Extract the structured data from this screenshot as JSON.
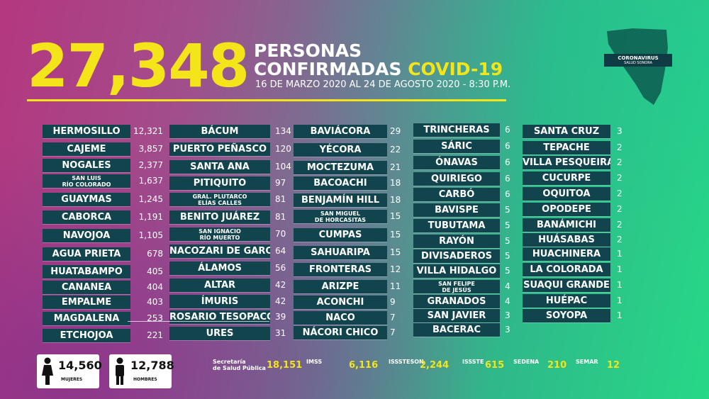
{
  "header": {
    "total": "27,348",
    "line1": "PERSONAS",
    "line2": "CONFIRMADAS",
    "covid": "COVID-19",
    "date_range": "16 DE MARZO 2020 AL 24 DE AGOSTO 2020 - 8:30 P.M."
  },
  "badge": {
    "title": "CORONAVIRUS",
    "subtitle": "SALUD SONORA"
  },
  "colors": {
    "accent": "#f4e41a",
    "pill": "#12444d"
  },
  "columns": [
    [
      {
        "name": "HERMOSILLO",
        "value": "12,321"
      },
      {
        "name": "CAJEME",
        "value": "3,857"
      },
      {
        "name": "NOGALES",
        "value": "2,377"
      },
      {
        "name": "SAN LUIS\nRÍO COLORADO",
        "value": "1,637"
      },
      {
        "name": "GUAYMAS",
        "value": "1,245"
      },
      {
        "name": "CABORCA",
        "value": "1,191"
      },
      {
        "name": "NAVOJOA",
        "value": "1,105"
      },
      {
        "name": "AGUA PRIETA",
        "value": "678"
      },
      {
        "name": "HUATABAMPO",
        "value": "405"
      },
      {
        "name": "CANANEA",
        "value": "404"
      },
      {
        "name": "EMPALME",
        "value": "403"
      },
      {
        "name": "MAGDALENA",
        "value": "253"
      },
      {
        "name": "ETCHOJOA",
        "value": "221"
      }
    ],
    [
      {
        "name": "BÁCUM",
        "value": "134"
      },
      {
        "name": "PUERTO PEÑASCO",
        "value": "120"
      },
      {
        "name": "SANTA ANA",
        "value": "104"
      },
      {
        "name": "PITIQUITO",
        "value": "97"
      },
      {
        "name": "GRAL. PLUTARCO\nELÍAS CALLES",
        "value": "81"
      },
      {
        "name": "BENITO JUÁREZ",
        "value": "81"
      },
      {
        "name": "SAN IGNACIO\nRÍO MUERTO",
        "value": "70"
      },
      {
        "name": "NACOZARI DE GARCÍA",
        "value": "64"
      },
      {
        "name": "ÁLAMOS",
        "value": "56"
      },
      {
        "name": "ALTAR",
        "value": "42"
      },
      {
        "name": "ÍMURIS",
        "value": "42"
      },
      {
        "name": "ROSARIO TESOPACO",
        "value": "39"
      },
      {
        "name": "URES",
        "value": "31"
      }
    ],
    [
      {
        "name": "BAVIÁCORA",
        "value": "29"
      },
      {
        "name": "YÉCORA",
        "value": "22"
      },
      {
        "name": "MOCTEZUMA",
        "value": "21"
      },
      {
        "name": "BACOACHI",
        "value": "18"
      },
      {
        "name": "BENJAMÍN HILL",
        "value": "18"
      },
      {
        "name": "SAN MIGUEL\nDE HORCASITAS",
        "value": "15"
      },
      {
        "name": "CUMPAS",
        "value": "15"
      },
      {
        "name": "SAHUARIPA",
        "value": "15"
      },
      {
        "name": "FRONTERAS",
        "value": "12"
      },
      {
        "name": "ARIZPE",
        "value": "11"
      },
      {
        "name": "ACONCHI",
        "value": "9"
      },
      {
        "name": "NACO",
        "value": "7"
      },
      {
        "name": "NÁCORI CHICO",
        "value": "7"
      }
    ],
    [
      {
        "name": "TRINCHERAS",
        "value": "6"
      },
      {
        "name": "SÁRIC",
        "value": "6"
      },
      {
        "name": "ÓNAVAS",
        "value": "6"
      },
      {
        "name": "QUIRIEGO",
        "value": "6"
      },
      {
        "name": "CARBÓ",
        "value": "6"
      },
      {
        "name": "BAVISPE",
        "value": "5"
      },
      {
        "name": "TUBUTAMA",
        "value": "5"
      },
      {
        "name": "RAYÓN",
        "value": "5"
      },
      {
        "name": "DIVISADEROS",
        "value": "5"
      },
      {
        "name": "VILLA HIDALGO",
        "value": "5"
      },
      {
        "name": "SAN FELIPE\nDE JESÚS",
        "value": "4"
      },
      {
        "name": "GRANADOS",
        "value": "4"
      },
      {
        "name": "SAN JAVIER",
        "value": "3"
      },
      {
        "name": "BACERAC",
        "value": "3"
      }
    ],
    [
      {
        "name": "SANTA CRUZ",
        "value": "3"
      },
      {
        "name": "TEPACHE",
        "value": "2"
      },
      {
        "name": "VILLA PESQUEIRA",
        "value": "2"
      },
      {
        "name": "CUCURPE",
        "value": "2"
      },
      {
        "name": "OQUITOA",
        "value": "2"
      },
      {
        "name": "OPODEPE",
        "value": "2"
      },
      {
        "name": "BANÁMICHI",
        "value": "2"
      },
      {
        "name": "HUÁSABAS",
        "value": "2"
      },
      {
        "name": "HUACHINERA",
        "value": "1"
      },
      {
        "name": "LA COLORADA",
        "value": "1"
      },
      {
        "name": "SUAQUI GRANDE",
        "value": "1"
      },
      {
        "name": "HUÉPAC",
        "value": "1"
      },
      {
        "name": "SOYOPA",
        "value": "1"
      }
    ]
  ],
  "gender": {
    "women": {
      "value": "14,560",
      "label": "MUJERES"
    },
    "men": {
      "value": "12,788",
      "label": "HOMBRES"
    }
  },
  "institutions": [
    {
      "name": "Secretaría\nde Salud Pública",
      "value": "18,151",
      "icon": "ssp-logo-icon"
    },
    {
      "name": "IMSS",
      "value": "6,116",
      "icon": "imss-logo-icon"
    },
    {
      "name": "ISSSTESON",
      "value": "2,244",
      "icon": "isssteson-logo-icon"
    },
    {
      "name": "ISSSTE",
      "value": "615",
      "icon": "issste-logo-icon"
    },
    {
      "name": "SEDENA",
      "value": "210",
      "icon": "sedena-logo-icon"
    },
    {
      "name": "SEMAR",
      "value": "12",
      "icon": "semar-logo-icon"
    }
  ]
}
